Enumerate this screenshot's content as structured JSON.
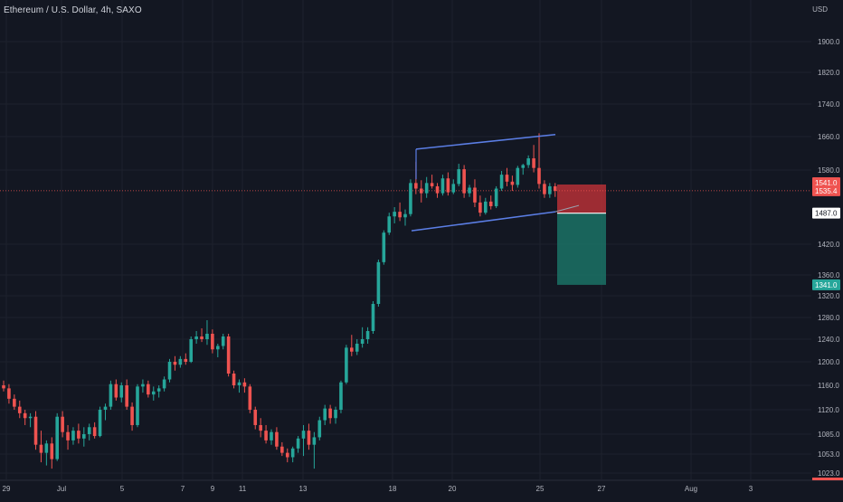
{
  "header": {
    "symbol_title": "Ethereum / U.S. Dollar, 4h, SAXO",
    "currency": "USD"
  },
  "colors": {
    "background": "#131722",
    "grid": "#1e222d",
    "axis_text": "#b2b5be",
    "up": "#26a69a",
    "down": "#ef5350",
    "channel": "#5b7ee5",
    "stop_zone": "#d3343a",
    "target_zone": "#1b7a6b",
    "current_price_line": "#ef5350"
  },
  "chart_data": {
    "type": "candlestick",
    "title": "Ethereum / U.S. Dollar, 4h, SAXO",
    "y_axis": {
      "scale": "log",
      "range": [
        1010,
        2000
      ],
      "ticks": [
        1900.0,
        1820.0,
        1740.0,
        1660.0,
        1580.0,
        1420.0,
        1360.0,
        1320.0,
        1280.0,
        1240.0,
        1200.0,
        1160.0,
        1120.0,
        1085.0,
        1053.0,
        1023.0
      ],
      "tick_labels": [
        "1900.0",
        "1820.0",
        "1740.0",
        "1660.0",
        "1580.0",
        "1420.0",
        "1360.0",
        "1320.0",
        "1280.0",
        "1240.0",
        "1200.0",
        "1160.0",
        "1120.0",
        "1085.0",
        "1053.0",
        "1023.0"
      ]
    },
    "x_axis": {
      "tick_labels": [
        "29",
        "Jul",
        "5",
        "7",
        "9",
        "11",
        "13",
        "18",
        "20",
        "25",
        "27",
        "Aug",
        "3"
      ]
    },
    "price_labels": [
      {
        "value": 1541.0,
        "label": "1541.0",
        "kind": "stop"
      },
      {
        "value": 1535.4,
        "label": "1535.4",
        "kind": "last"
      },
      {
        "value": 1487.0,
        "label": "1487.0",
        "kind": "entry"
      },
      {
        "value": 1341.0,
        "label": "1341.0",
        "kind": "target"
      }
    ],
    "position_tool": {
      "type": "short",
      "entry": 1487.0,
      "stop": 1541.0,
      "target": 1341.0
    },
    "channel": {
      "upper": {
        "from": 1630,
        "to": 1665
      },
      "lower": {
        "from": 1449,
        "to": 1490
      }
    },
    "last_price": 1535.4,
    "candles_ohlc": [
      [
        1160,
        1168,
        1150,
        1155
      ],
      [
        1155,
        1162,
        1130,
        1138
      ],
      [
        1138,
        1145,
        1120,
        1125
      ],
      [
        1125,
        1135,
        1108,
        1115
      ],
      [
        1115,
        1120,
        1098,
        1108
      ],
      [
        1108,
        1115,
        1095,
        1110
      ],
      [
        1110,
        1118,
        1060,
        1068
      ],
      [
        1068,
        1090,
        1040,
        1055
      ],
      [
        1055,
        1075,
        1035,
        1070
      ],
      [
        1070,
        1080,
        1030,
        1045
      ],
      [
        1045,
        1115,
        1042,
        1110
      ],
      [
        1110,
        1118,
        1080,
        1088
      ],
      [
        1088,
        1098,
        1060,
        1075
      ],
      [
        1075,
        1095,
        1068,
        1090
      ],
      [
        1090,
        1100,
        1070,
        1078
      ],
      [
        1078,
        1095,
        1065,
        1085
      ],
      [
        1085,
        1100,
        1075,
        1095
      ],
      [
        1095,
        1102,
        1078,
        1082
      ],
      [
        1082,
        1125,
        1080,
        1120
      ],
      [
        1120,
        1130,
        1105,
        1125
      ],
      [
        1125,
        1168,
        1120,
        1162
      ],
      [
        1162,
        1170,
        1135,
        1140
      ],
      [
        1140,
        1165,
        1132,
        1160
      ],
      [
        1160,
        1170,
        1120,
        1125
      ],
      [
        1125,
        1132,
        1090,
        1098
      ],
      [
        1098,
        1162,
        1095,
        1158
      ],
      [
        1158,
        1170,
        1148,
        1162
      ],
      [
        1162,
        1168,
        1140,
        1145
      ],
      [
        1145,
        1158,
        1135,
        1150
      ],
      [
        1150,
        1160,
        1140,
        1155
      ],
      [
        1155,
        1175,
        1150,
        1170
      ],
      [
        1170,
        1205,
        1165,
        1200
      ],
      [
        1200,
        1210,
        1185,
        1195
      ],
      [
        1195,
        1210,
        1190,
        1205
      ],
      [
        1205,
        1215,
        1195,
        1200
      ],
      [
        1200,
        1245,
        1198,
        1240
      ],
      [
        1240,
        1255,
        1232,
        1245
      ],
      [
        1245,
        1260,
        1235,
        1240
      ],
      [
        1240,
        1275,
        1230,
        1250
      ],
      [
        1250,
        1258,
        1215,
        1222
      ],
      [
        1222,
        1232,
        1208,
        1228
      ],
      [
        1228,
        1250,
        1222,
        1245
      ],
      [
        1245,
        1250,
        1175,
        1180
      ],
      [
        1180,
        1185,
        1155,
        1160
      ],
      [
        1160,
        1170,
        1148,
        1165
      ],
      [
        1165,
        1172,
        1148,
        1158
      ],
      [
        1158,
        1162,
        1115,
        1120
      ],
      [
        1120,
        1125,
        1092,
        1098
      ],
      [
        1098,
        1108,
        1080,
        1090
      ],
      [
        1090,
        1098,
        1070,
        1075
      ],
      [
        1075,
        1092,
        1068,
        1088
      ],
      [
        1088,
        1095,
        1060,
        1065
      ],
      [
        1065,
        1072,
        1050,
        1055
      ],
      [
        1055,
        1062,
        1040,
        1048
      ],
      [
        1048,
        1065,
        1040,
        1062
      ],
      [
        1062,
        1082,
        1055,
        1078
      ],
      [
        1078,
        1098,
        1050,
        1090
      ],
      [
        1090,
        1100,
        1060,
        1068
      ],
      [
        1068,
        1088,
        1030,
        1080
      ],
      [
        1080,
        1110,
        1075,
        1105
      ],
      [
        1105,
        1128,
        1098,
        1122
      ],
      [
        1122,
        1128,
        1100,
        1108
      ],
      [
        1108,
        1125,
        1100,
        1120
      ],
      [
        1120,
        1168,
        1115,
        1165
      ],
      [
        1165,
        1230,
        1162,
        1225
      ],
      [
        1225,
        1248,
        1210,
        1218
      ],
      [
        1218,
        1240,
        1212,
        1232
      ],
      [
        1232,
        1262,
        1225,
        1240
      ],
      [
        1240,
        1262,
        1232,
        1255
      ],
      [
        1255,
        1310,
        1250,
        1305
      ],
      [
        1305,
        1390,
        1300,
        1385
      ],
      [
        1385,
        1450,
        1380,
        1445
      ],
      [
        1445,
        1488,
        1440,
        1480
      ],
      [
        1480,
        1500,
        1465,
        1490
      ],
      [
        1490,
        1510,
        1470,
        1478
      ],
      [
        1478,
        1495,
        1460,
        1485
      ],
      [
        1485,
        1560,
        1480,
        1552
      ],
      [
        1552,
        1600,
        1528,
        1540
      ],
      [
        1540,
        1558,
        1510,
        1530
      ],
      [
        1530,
        1565,
        1520,
        1552
      ],
      [
        1552,
        1570,
        1540,
        1545
      ],
      [
        1545,
        1552,
        1520,
        1530
      ],
      [
        1530,
        1570,
        1525,
        1562
      ],
      [
        1562,
        1575,
        1525,
        1532
      ],
      [
        1532,
        1560,
        1528,
        1550
      ],
      [
        1550,
        1595,
        1545,
        1582
      ],
      [
        1582,
        1592,
        1520,
        1530
      ],
      [
        1530,
        1548,
        1522,
        1542
      ],
      [
        1542,
        1560,
        1500,
        1510
      ],
      [
        1510,
        1525,
        1480,
        1488
      ],
      [
        1488,
        1520,
        1484,
        1512
      ],
      [
        1512,
        1525,
        1495,
        1502
      ],
      [
        1502,
        1545,
        1498,
        1540
      ],
      [
        1540,
        1578,
        1535,
        1570
      ],
      [
        1570,
        1585,
        1545,
        1555
      ],
      [
        1555,
        1568,
        1535,
        1548
      ],
      [
        1548,
        1590,
        1542,
        1585
      ],
      [
        1585,
        1595,
        1570,
        1592
      ],
      [
        1592,
        1615,
        1585,
        1608
      ],
      [
        1608,
        1640,
        1575,
        1585
      ],
      [
        1585,
        1668,
        1540,
        1550
      ],
      [
        1550,
        1558,
        1520,
        1528
      ],
      [
        1528,
        1552,
        1520,
        1545
      ],
      [
        1545,
        1552,
        1522,
        1535
      ]
    ]
  }
}
